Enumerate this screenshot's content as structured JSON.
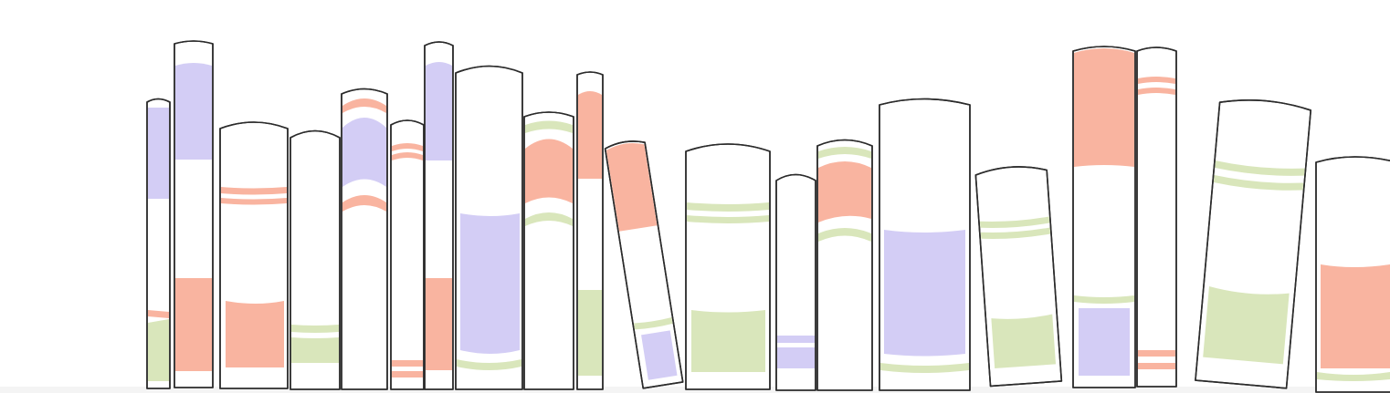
{
  "palette": {
    "lavender": "#d3cdf5",
    "salmon": "#f9b4a0",
    "sage": "#d9e6bb",
    "outline": "#2b2b2b",
    "paper": "#ffffff"
  },
  "books": [
    {
      "id": "book-1",
      "bands": [
        "lavender",
        "salmon",
        "sage"
      ]
    },
    {
      "id": "book-2",
      "bands": [
        "lavender",
        "salmon"
      ]
    },
    {
      "id": "book-3",
      "bands": [
        "salmon",
        "salmon"
      ]
    },
    {
      "id": "book-4",
      "bands": [
        "sage",
        "sage"
      ]
    },
    {
      "id": "book-5",
      "bands": [
        "salmon",
        "lavender",
        "salmon"
      ]
    },
    {
      "id": "book-6",
      "bands": [
        "salmon",
        "salmon"
      ]
    },
    {
      "id": "book-7",
      "bands": [
        "lavender",
        "salmon"
      ]
    },
    {
      "id": "book-8",
      "bands": [
        "lavender",
        "sage"
      ]
    },
    {
      "id": "book-9",
      "bands": [
        "sage",
        "salmon",
        "sage"
      ]
    },
    {
      "id": "book-10",
      "bands": [
        "salmon",
        "sage"
      ]
    },
    {
      "id": "book-11",
      "bands": [
        "salmon",
        "sage",
        "lavender"
      ]
    },
    {
      "id": "book-12",
      "bands": [
        "sage",
        "sage"
      ]
    },
    {
      "id": "book-13",
      "bands": [
        "lavender",
        "lavender"
      ]
    },
    {
      "id": "book-14",
      "bands": [
        "sage",
        "salmon",
        "sage"
      ]
    },
    {
      "id": "book-15",
      "bands": [
        "lavender",
        "sage"
      ]
    },
    {
      "id": "book-16",
      "bands": [
        "sage",
        "sage"
      ]
    },
    {
      "id": "book-17",
      "bands": [
        "salmon",
        "sage",
        "lavender"
      ]
    },
    {
      "id": "book-18",
      "bands": [
        "salmon",
        "salmon"
      ]
    },
    {
      "id": "book-19",
      "bands": [
        "sage",
        "sage"
      ]
    },
    {
      "id": "book-20",
      "bands": [
        "salmon",
        "sage"
      ]
    }
  ]
}
